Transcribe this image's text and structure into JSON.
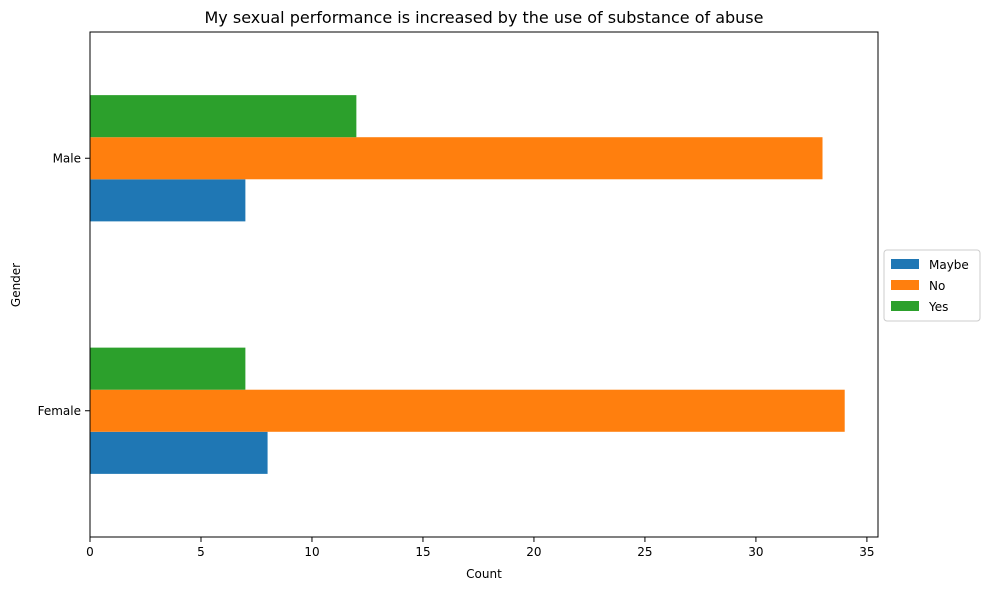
{
  "chart_data": {
    "type": "bar",
    "orientation": "horizontal",
    "title": "My sexual performance is increased by the use of substance of abuse",
    "xlabel": "Count",
    "ylabel": "Gender",
    "categories": [
      "Female",
      "Male"
    ],
    "series": [
      {
        "name": "Maybe",
        "values": [
          8,
          7
        ],
        "color": "#1f77b4"
      },
      {
        "name": "No",
        "values": [
          34,
          33
        ],
        "color": "#ff7f0e"
      },
      {
        "name": "Yes",
        "values": [
          7,
          12
        ],
        "color": "#2ca02c"
      }
    ],
    "xlim": [
      0,
      35.5
    ],
    "xticks": [
      0,
      5,
      10,
      15,
      20,
      25,
      30,
      35
    ],
    "grid": false,
    "legend_position": "center-right, outside plot"
  }
}
